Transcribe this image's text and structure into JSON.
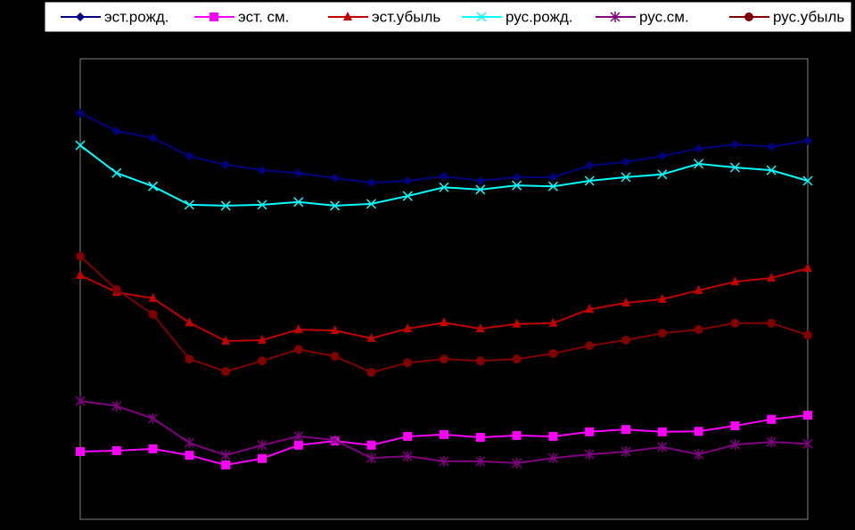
{
  "chart_data": {
    "type": "line",
    "categories": [
      null,
      null,
      null,
      null,
      null,
      null,
      null,
      null,
      null,
      null,
      null,
      null,
      null,
      null,
      null,
      null,
      null,
      null,
      null,
      null,
      null
    ],
    "ylim": [
      0,
      100
    ],
    "series": [
      {
        "name": "эст.рожд.",
        "color": "#000080",
        "marker": "diamond",
        "values": [
          88.2,
          84.3,
          82.8,
          78.9,
          77.0,
          75.8,
          75.2,
          74.1,
          73.1,
          73.5,
          74.5,
          73.5,
          74.3,
          74.3,
          76.8,
          77.6,
          78.9,
          80.5,
          81.4,
          80.9,
          82.2
        ]
      },
      {
        "name": "эст. см.",
        "color": "#ff00ff",
        "marker": "square",
        "values": [
          14.7,
          14.9,
          15.3,
          13.9,
          11.8,
          13.2,
          16.1,
          17.0,
          16.1,
          18.0,
          18.4,
          17.8,
          18.2,
          18.0,
          19.0,
          19.5,
          19.0,
          19.1,
          20.3,
          21.7,
          22.6
        ]
      },
      {
        "name": "эст.убыль",
        "color": "#c00000",
        "marker": "triangle",
        "values": [
          53.0,
          49.3,
          48.0,
          42.7,
          38.7,
          38.9,
          41.2,
          41.0,
          39.3,
          41.4,
          42.7,
          41.4,
          42.4,
          42.6,
          45.6,
          47.0,
          47.8,
          49.7,
          51.6,
          52.4,
          54.5
        ]
      },
      {
        "name": "рус.рожд.",
        "color": "#00ffff",
        "marker": "x",
        "values": [
          81.2,
          75.2,
          72.3,
          68.3,
          68.1,
          68.3,
          68.9,
          68.1,
          68.5,
          70.2,
          72.1,
          71.6,
          72.5,
          72.3,
          73.5,
          74.3,
          74.9,
          77.2,
          76.4,
          75.8,
          73.5
        ]
      },
      {
        "name": "рус.см.",
        "color": "#800080",
        "marker": "star",
        "values": [
          25.7,
          24.6,
          21.9,
          16.6,
          13.9,
          16.1,
          18.0,
          17.2,
          13.3,
          13.7,
          12.6,
          12.6,
          12.2,
          13.3,
          14.1,
          14.7,
          15.7,
          14.1,
          16.2,
          16.8,
          16.4
        ]
      },
      {
        "name": "рус.убыль",
        "color": "#800000",
        "marker": "circle",
        "values": [
          57.1,
          49.9,
          44.5,
          34.8,
          32.1,
          34.4,
          36.9,
          35.4,
          31.9,
          34.0,
          34.8,
          34.4,
          34.8,
          36.0,
          37.7,
          38.9,
          40.4,
          41.2,
          42.6,
          42.6,
          40.0
        ]
      }
    ]
  }
}
